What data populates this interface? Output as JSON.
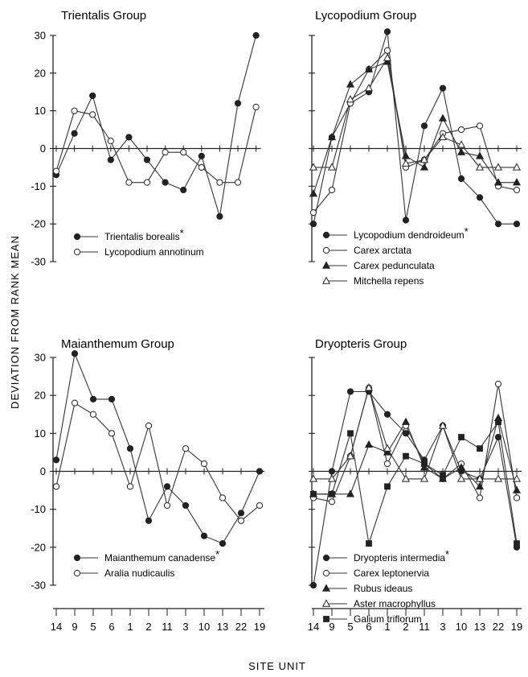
{
  "figure": {
    "ylabel": "DEVIATION FROM RANK MEAN",
    "xlabel": "SITE UNIT",
    "x_categories": [
      "14",
      "9",
      "5",
      "6",
      "1",
      "2",
      "11",
      "3",
      "10",
      "13",
      "22",
      "19"
    ],
    "y_ticks": [
      30,
      20,
      10,
      0,
      -10,
      -20,
      -30
    ],
    "ylim": [
      -30,
      30
    ]
  },
  "chart_data": [
    {
      "type": "line",
      "title": "Trientalis Group",
      "categories": [
        "14",
        "9",
        "5",
        "6",
        "1",
        "2",
        "11",
        "3",
        "10",
        "13",
        "22",
        "19"
      ],
      "ylim": [
        -30,
        30
      ],
      "legend_position": "lower-left",
      "series": [
        {
          "name": "Trientalis borealis",
          "asterisk": "*",
          "marker": "filled-circle",
          "values": [
            -7,
            4,
            14,
            -3,
            3,
            -3,
            -9,
            -11,
            -2,
            -18,
            12,
            30
          ]
        },
        {
          "name": "Lycopodium annotinum",
          "marker": "open-circle",
          "values": [
            -6,
            10,
            9,
            2,
            -9,
            -9,
            -1,
            -1,
            -5,
            -9,
            -9,
            11
          ]
        }
      ]
    },
    {
      "type": "line",
      "title": "Lycopodium Group",
      "categories": [
        "14",
        "9",
        "5",
        "6",
        "1",
        "2",
        "11",
        "3",
        "10",
        "13",
        "22",
        "19"
      ],
      "ylim": [
        -30,
        30
      ],
      "legend_position": "lower-left",
      "series": [
        {
          "name": "Lycopodium dendroideum",
          "asterisk": "*",
          "marker": "filled-circle",
          "values": [
            -20,
            3,
            12,
            15,
            31,
            -19,
            6,
            16,
            -8,
            -13,
            -20,
            -20
          ]
        },
        {
          "name": "Carex arctata",
          "marker": "open-circle",
          "values": [
            -17,
            -11,
            12,
            21,
            26,
            -5,
            -3,
            4,
            5,
            6,
            -10,
            -11
          ]
        },
        {
          "name": "Carex pedunculata",
          "marker": "filled-triangle",
          "values": [
            -12,
            3,
            17,
            21,
            23,
            -2,
            -5,
            8,
            -1,
            -2,
            -9,
            -9
          ]
        },
        {
          "name": "Mitchella repens",
          "marker": "open-triangle",
          "values": [
            -5,
            -5,
            13,
            16,
            24,
            -4,
            -3,
            3,
            1,
            -5,
            -5,
            -5
          ]
        }
      ]
    },
    {
      "type": "line",
      "title": "Maianthemum Group",
      "categories": [
        "14",
        "9",
        "5",
        "6",
        "1",
        "2",
        "11",
        "3",
        "10",
        "13",
        "22",
        "19"
      ],
      "ylim": [
        -30,
        30
      ],
      "legend_position": "lower-left",
      "series": [
        {
          "name": "Maianthemum canadense",
          "asterisk": "*",
          "marker": "filled-circle",
          "values": [
            3,
            31,
            19,
            19,
            6,
            -13,
            -4,
            -9,
            -17,
            -19,
            -11,
            0
          ]
        },
        {
          "name": "Aralia nudicaulis",
          "marker": "open-circle",
          "values": [
            -4,
            18,
            15,
            10,
            -4,
            12,
            -9,
            6,
            2,
            -7,
            -13,
            -9
          ]
        }
      ]
    },
    {
      "type": "line",
      "title": "Dryopteris Group",
      "categories": [
        "14",
        "9",
        "5",
        "6",
        "1",
        "2",
        "11",
        "3",
        "10",
        "13",
        "22",
        "19"
      ],
      "ylim": [
        -30,
        30
      ],
      "legend_position": "lower-left",
      "series": [
        {
          "name": "Dryopteris intermedia",
          "asterisk": "*",
          "marker": "filled-circle",
          "values": [
            -30,
            0,
            21,
            21,
            15,
            10,
            3,
            12,
            0,
            -2,
            9,
            -20
          ]
        },
        {
          "name": "Carex leptonervia",
          "marker": "open-circle",
          "values": [
            -7,
            -8,
            4,
            22,
            2,
            12,
            2,
            -2,
            2,
            -7,
            23,
            -7
          ]
        },
        {
          "name": "Rubus ideaus",
          "marker": "filled-triangle",
          "values": [
            -6,
            -6,
            -6,
            7,
            5,
            13,
            1,
            -2,
            1,
            -4,
            14,
            -5
          ]
        },
        {
          "name": "Aster macrophyllus",
          "marker": "open-triangle",
          "values": [
            -2,
            -2,
            4,
            22,
            6,
            -2,
            -2,
            12,
            -2,
            -2,
            -2,
            -2
          ]
        },
        {
          "name": "Galium triflorum",
          "marker": "filled-square",
          "values": [
            -6,
            -6,
            10,
            -19,
            -4,
            4,
            2,
            -1,
            9,
            6,
            13,
            -19
          ]
        }
      ]
    }
  ]
}
